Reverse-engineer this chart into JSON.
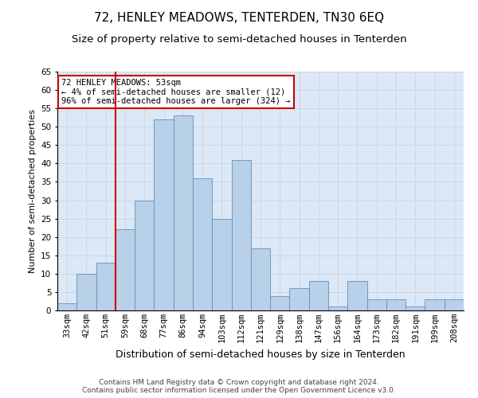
{
  "title": "72, HENLEY MEADOWS, TENTERDEN, TN30 6EQ",
  "subtitle": "Size of property relative to semi-detached houses in Tenterden",
  "xlabel": "Distribution of semi-detached houses by size in Tenterden",
  "ylabel": "Number of semi-detached properties",
  "categories": [
    "33sqm",
    "42sqm",
    "51sqm",
    "59sqm",
    "68sqm",
    "77sqm",
    "86sqm",
    "94sqm",
    "103sqm",
    "112sqm",
    "121sqm",
    "129sqm",
    "138sqm",
    "147sqm",
    "156sqm",
    "164sqm",
    "173sqm",
    "182sqm",
    "191sqm",
    "199sqm",
    "208sqm"
  ],
  "values": [
    2,
    10,
    13,
    22,
    30,
    52,
    53,
    36,
    25,
    41,
    17,
    4,
    6,
    8,
    1,
    8,
    3,
    3,
    1,
    3,
    3
  ],
  "bar_color": "#b8d0e8",
  "bar_edge_color": "#6090c0",
  "vline_index": 2,
  "vline_color": "#cc0000",
  "annotation_text": "72 HENLEY MEADOWS: 53sqm\n← 4% of semi-detached houses are smaller (12)\n96% of semi-detached houses are larger (324) →",
  "annotation_box_color": "#ffffff",
  "annotation_box_edge": "#cc0000",
  "ylim": [
    0,
    65
  ],
  "yticks": [
    0,
    5,
    10,
    15,
    20,
    25,
    30,
    35,
    40,
    45,
    50,
    55,
    60,
    65
  ],
  "grid_color": "#c8d4e0",
  "background_color": "#dce8f5",
  "footer_text": "Contains HM Land Registry data © Crown copyright and database right 2024.\nContains public sector information licensed under the Open Government Licence v3.0.",
  "title_fontsize": 11,
  "subtitle_fontsize": 9.5,
  "xlabel_fontsize": 9,
  "ylabel_fontsize": 8,
  "tick_fontsize": 7.5,
  "annotation_fontsize": 7.5,
  "footer_fontsize": 6.5
}
